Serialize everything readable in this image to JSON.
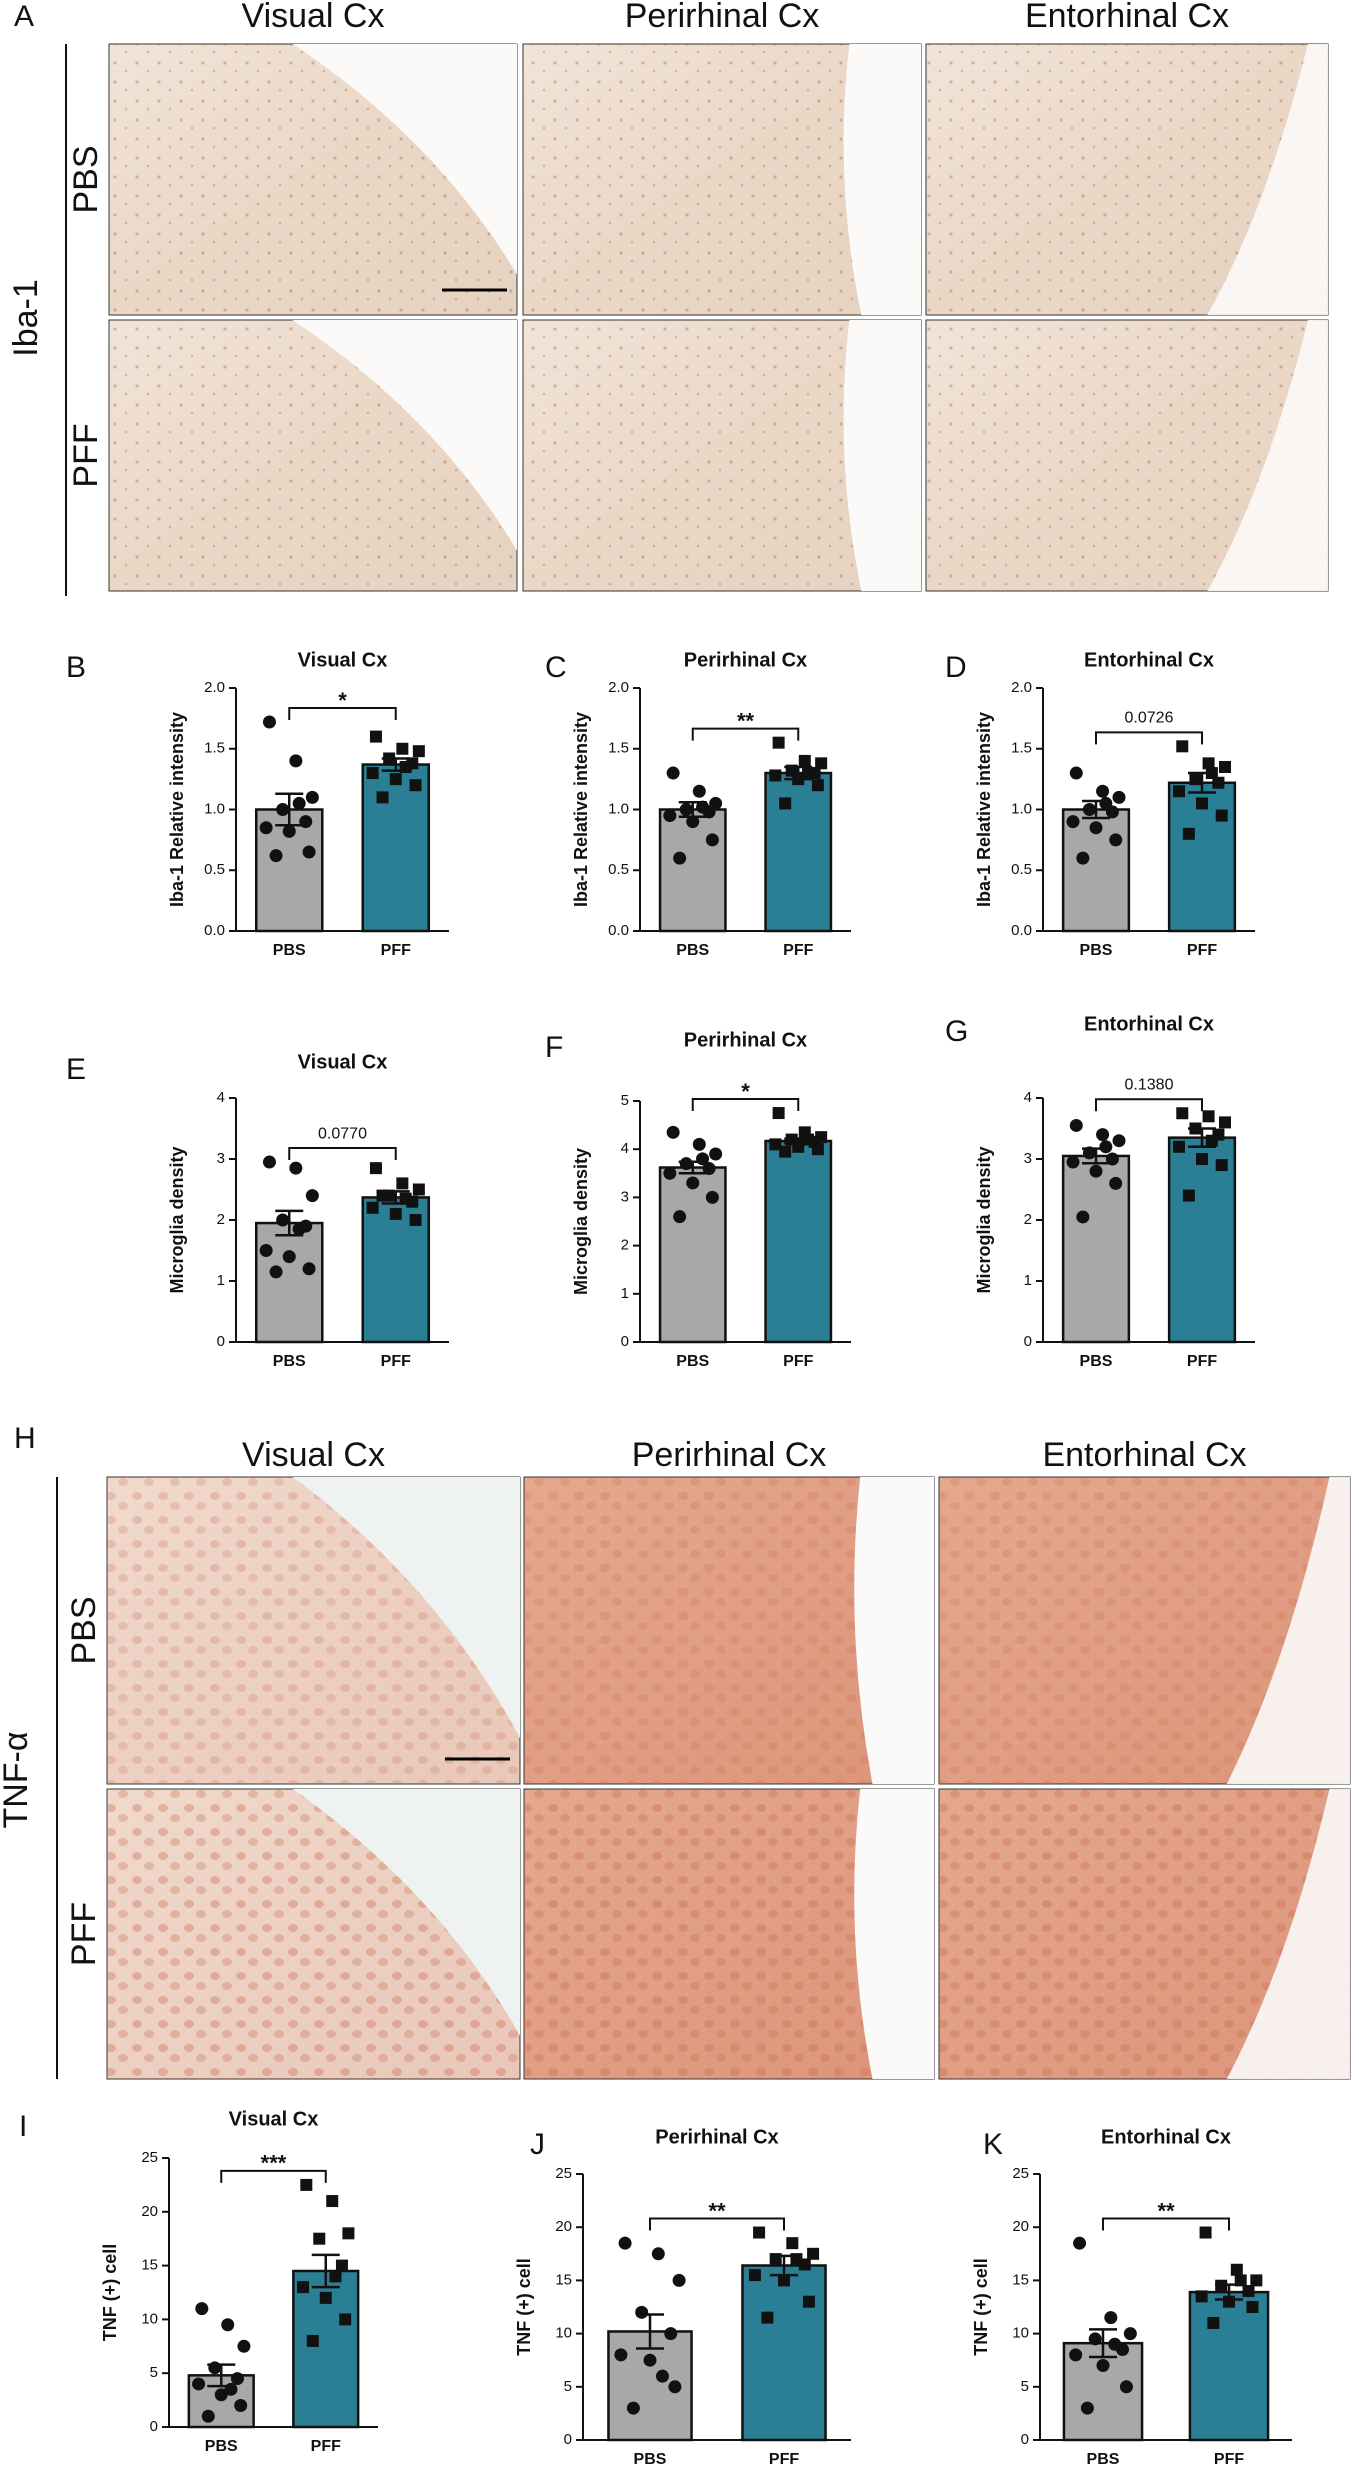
{
  "image_panels": [
    {
      "panel": "A",
      "marker": "Iba-1",
      "columns": [
        "Visual Cx",
        "Perirhinal Cx",
        "Entorhinal Cx"
      ],
      "rows": [
        "PBS",
        "PFF"
      ]
    },
    {
      "panel": "H",
      "marker": "TNF-α",
      "columns": [
        "Visual Cx",
        "Perirhinal Cx",
        "Entorhinal Cx"
      ],
      "rows": [
        "PBS",
        "PFF"
      ]
    }
  ],
  "chart_data": [
    {
      "panel": "B",
      "type": "bar",
      "title": "Visual Cx",
      "ylabel": "Iba-1 Relative intensity",
      "categories": [
        "PBS",
        "PFF"
      ],
      "values": [
        1.0,
        1.37
      ],
      "errors": [
        0.13,
        0.05
      ],
      "points": [
        [
          1.72,
          1.4,
          1.1,
          1.0,
          0.9,
          0.85,
          0.82,
          0.65,
          0.62,
          1.05
        ],
        [
          1.6,
          1.5,
          1.48,
          1.42,
          1.38,
          1.3,
          1.25,
          1.2,
          1.1,
          1.35
        ]
      ],
      "colors": [
        "#a8a7a9",
        "#2b7f95"
      ],
      "markers": [
        "circle",
        "square"
      ],
      "ylim": [
        0,
        2
      ],
      "yticks": [
        {
          "value": 0,
          "label": "0.0"
        },
        0.5,
        {
          "value": 1,
          "label": "1.0"
        },
        1.5,
        {
          "value": 2,
          "label": "2.0"
        }
      ],
      "annotation": "*"
    },
    {
      "panel": "C",
      "type": "bar",
      "title": "Perirhinal Cx",
      "ylabel": "Iba-1 Relative intensity",
      "categories": [
        "PBS",
        "PFF"
      ],
      "values": [
        1.0,
        1.3
      ],
      "errors": [
        0.06,
        0.05
      ],
      "points": [
        [
          1.3,
          1.15,
          1.05,
          1.0,
          0.98,
          0.95,
          0.9,
          0.75,
          0.6,
          1.02
        ],
        [
          1.55,
          1.4,
          1.38,
          1.32,
          1.3,
          1.28,
          1.25,
          1.2,
          1.05,
          1.3
        ]
      ],
      "colors": [
        "#a8a7a9",
        "#2b7f95"
      ],
      "markers": [
        "circle",
        "square"
      ],
      "ylim": [
        0,
        2
      ],
      "yticks": [
        {
          "value": 0,
          "label": "0.0"
        },
        0.5,
        {
          "value": 1,
          "label": "1.0"
        },
        1.5,
        {
          "value": 2,
          "label": "2.0"
        }
      ],
      "annotation": "**"
    },
    {
      "panel": "D",
      "type": "bar",
      "title": "Entorhinal Cx",
      "ylabel": "Iba-1 Relative intensity",
      "categories": [
        "PBS",
        "PFF"
      ],
      "values": [
        1.0,
        1.22
      ],
      "errors": [
        0.07,
        0.08
      ],
      "points": [
        [
          1.3,
          1.15,
          1.1,
          1.0,
          0.98,
          0.9,
          0.85,
          0.75,
          0.6,
          1.05
        ],
        [
          1.52,
          1.38,
          1.35,
          1.25,
          1.22,
          1.15,
          1.05,
          0.95,
          0.8,
          1.3
        ]
      ],
      "colors": [
        "#a8a7a9",
        "#2b7f95"
      ],
      "markers": [
        "circle",
        "square"
      ],
      "ylim": [
        0,
        2
      ],
      "yticks": [
        {
          "value": 0,
          "label": "0.0"
        },
        0.5,
        {
          "value": 1,
          "label": "1.0"
        },
        1.5,
        {
          "value": 2,
          "label": "2.0"
        }
      ],
      "annotation": "0.0726"
    },
    {
      "panel": "E",
      "type": "bar",
      "title": "Visual Cx",
      "ylabel": "Microglia density",
      "categories": [
        "PBS",
        "PFF"
      ],
      "values": [
        1.95,
        2.37
      ],
      "errors": [
        0.2,
        0.1
      ],
      "points": [
        [
          2.95,
          2.85,
          2.4,
          2.0,
          1.9,
          1.5,
          1.4,
          1.2,
          1.15,
          1.85
        ],
        [
          2.85,
          2.6,
          2.5,
          2.4,
          2.3,
          2.2,
          2.1,
          2.0,
          2.4,
          2.35
        ]
      ],
      "colors": [
        "#a8a7a9",
        "#2b7f95"
      ],
      "markers": [
        "circle",
        "square"
      ],
      "ylim": [
        0,
        4
      ],
      "yticks": [
        0,
        1,
        2,
        3,
        4
      ],
      "annotation": "0.0770"
    },
    {
      "panel": "F",
      "type": "bar",
      "title": "Perirhinal Cx",
      "ylabel": "Microglia density",
      "categories": [
        "PBS",
        "PFF"
      ],
      "values": [
        3.62,
        4.17
      ],
      "errors": [
        0.12,
        0.05
      ],
      "points": [
        [
          4.35,
          4.1,
          3.9,
          3.7,
          3.6,
          3.5,
          3.3,
          3.0,
          2.6,
          3.8
        ],
        [
          4.75,
          4.35,
          4.25,
          4.2,
          4.15,
          4.1,
          4.05,
          4.0,
          3.95,
          4.2
        ]
      ],
      "colors": [
        "#a8a7a9",
        "#2b7f95"
      ],
      "markers": [
        "circle",
        "square"
      ],
      "ylim": [
        0,
        5
      ],
      "yticks": [
        0,
        1,
        2,
        3,
        4,
        5
      ],
      "annotation": "*"
    },
    {
      "panel": "G",
      "type": "bar",
      "title": "Entorhinal Cx",
      "ylabel": "Microglia density",
      "categories": [
        "PBS",
        "PFF"
      ],
      "values": [
        3.05,
        3.35
      ],
      "errors": [
        0.12,
        0.15
      ],
      "points": [
        [
          3.55,
          3.4,
          3.3,
          3.1,
          3.0,
          2.95,
          2.8,
          2.6,
          2.05,
          3.2
        ],
        [
          3.75,
          3.7,
          3.6,
          3.5,
          3.4,
          3.2,
          3.0,
          2.9,
          2.4,
          3.3
        ]
      ],
      "colors": [
        "#a8a7a9",
        "#2b7f95"
      ],
      "markers": [
        "circle",
        "square"
      ],
      "ylim": [
        0,
        4
      ],
      "yticks": [
        0,
        1,
        2,
        3,
        4
      ],
      "annotation": "0.1380"
    },
    {
      "panel": "I",
      "type": "bar",
      "title": "Visual Cx",
      "ylabel": "TNF (+) cell",
      "categories": [
        "PBS",
        "PFF"
      ],
      "values": [
        4.8,
        14.5
      ],
      "errors": [
        1.0,
        1.5
      ],
      "points": [
        [
          11,
          9.5,
          7.5,
          5.5,
          4.5,
          4,
          3,
          2,
          1,
          3.5
        ],
        [
          22.5,
          21,
          18,
          17.5,
          15,
          13,
          12,
          10,
          8,
          14
        ]
      ],
      "colors": [
        "#a8a7a9",
        "#2b7f95"
      ],
      "markers": [
        "circle",
        "square"
      ],
      "ylim": [
        0,
        25
      ],
      "yticks": [
        0,
        5,
        10,
        15,
        20,
        25
      ],
      "annotation": "***"
    },
    {
      "panel": "J",
      "type": "bar",
      "title": "Perirhinal Cx",
      "ylabel": "TNF (+) cell",
      "categories": [
        "PBS",
        "PFF"
      ],
      "values": [
        10.2,
        16.4
      ],
      "errors": [
        1.6,
        0.9
      ],
      "points": [
        [
          18.5,
          17.5,
          15,
          12,
          10,
          8,
          7.5,
          5,
          3,
          6
        ],
        [
          19.5,
          18.5,
          17.5,
          17,
          16.5,
          15.5,
          15,
          13,
          11.5,
          17
        ]
      ],
      "colors": [
        "#a8a7a9",
        "#2b7f95"
      ],
      "markers": [
        "circle",
        "square"
      ],
      "ylim": [
        0,
        25
      ],
      "yticks": [
        0,
        5,
        10,
        15,
        20,
        25
      ],
      "annotation": "**"
    },
    {
      "panel": "K",
      "type": "bar",
      "title": "Entorhinal Cx",
      "ylabel": "TNF (+) cell",
      "categories": [
        "PBS",
        "PFF"
      ],
      "values": [
        9.1,
        13.9
      ],
      "errors": [
        1.3,
        0.7
      ],
      "points": [
        [
          18.5,
          11.5,
          10,
          9.5,
          8.5,
          8,
          7,
          5,
          3,
          9
        ],
        [
          19.5,
          16,
          15,
          14.5,
          14,
          13.5,
          13,
          12.5,
          11,
          15
        ]
      ],
      "colors": [
        "#a8a7a9",
        "#2b7f95"
      ],
      "markers": [
        "circle",
        "square"
      ],
      "ylim": [
        0,
        25
      ],
      "yticks": [
        0,
        5,
        10,
        15,
        20,
        25
      ],
      "annotation": "**"
    }
  ]
}
